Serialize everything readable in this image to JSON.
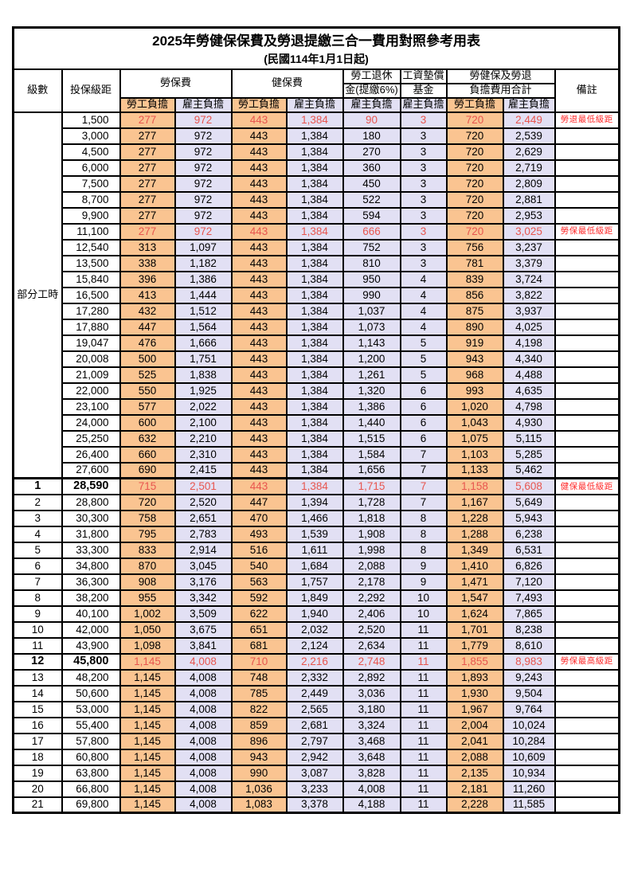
{
  "table": {
    "title": "2025年勞健保保費及勞退提繳三合一費用對照參考用表",
    "subtitle": "(民國114年1月1日起)",
    "columns": {
      "level": "級數",
      "bracket": "投保級距",
      "labor_insurance": "勞保費",
      "health_insurance": "健保費",
      "pension_line1": "勞工退休",
      "pension_line2": "金(提繳6%)",
      "wage_fund_line1": "工資墊償",
      "wage_fund_line2": "基金",
      "total_line1": "勞健保及勞退",
      "total_line2": "負擔費用合計",
      "remark": "備註",
      "employee": "勞工負擔",
      "employer": "雇主負擔"
    },
    "part_time_label": "部分工時",
    "part_time_rowspan": 23,
    "colors": {
      "employee_bg": "#FAC491",
      "employer_bg": "#E2E0F4",
      "highlight_value_text": "#E8564F",
      "note_text": "#FF2B2B",
      "border": "#000000"
    },
    "rows": [
      {
        "level": "",
        "bracket": "1,500",
        "values": [
          "277",
          "972",
          "443",
          "1,384",
          "90",
          "3",
          "720",
          "2,449"
        ],
        "note": "勞退最低級距",
        "red": true,
        "bold": false
      },
      {
        "level": "",
        "bracket": "3,000",
        "values": [
          "277",
          "972",
          "443",
          "1,384",
          "180",
          "3",
          "720",
          "2,539"
        ],
        "note": "",
        "red": false,
        "bold": false
      },
      {
        "level": "",
        "bracket": "4,500",
        "values": [
          "277",
          "972",
          "443",
          "1,384",
          "270",
          "3",
          "720",
          "2,629"
        ],
        "note": "",
        "red": false,
        "bold": false
      },
      {
        "level": "",
        "bracket": "6,000",
        "values": [
          "277",
          "972",
          "443",
          "1,384",
          "360",
          "3",
          "720",
          "2,719"
        ],
        "note": "",
        "red": false,
        "bold": false
      },
      {
        "level": "",
        "bracket": "7,500",
        "values": [
          "277",
          "972",
          "443",
          "1,384",
          "450",
          "3",
          "720",
          "2,809"
        ],
        "note": "",
        "red": false,
        "bold": false
      },
      {
        "level": "",
        "bracket": "8,700",
        "values": [
          "277",
          "972",
          "443",
          "1,384",
          "522",
          "3",
          "720",
          "2,881"
        ],
        "note": "",
        "red": false,
        "bold": false
      },
      {
        "level": "",
        "bracket": "9,900",
        "values": [
          "277",
          "972",
          "443",
          "1,384",
          "594",
          "3",
          "720",
          "2,953"
        ],
        "note": "",
        "red": false,
        "bold": false
      },
      {
        "level": "",
        "bracket": "11,100",
        "values": [
          "277",
          "972",
          "443",
          "1,384",
          "666",
          "3",
          "720",
          "3,025"
        ],
        "note": "勞保最低級距",
        "red": true,
        "bold": false
      },
      {
        "level": "",
        "bracket": "12,540",
        "values": [
          "313",
          "1,097",
          "443",
          "1,384",
          "752",
          "3",
          "756",
          "3,237"
        ],
        "note": "",
        "red": false,
        "bold": false
      },
      {
        "level": "",
        "bracket": "13,500",
        "values": [
          "338",
          "1,182",
          "443",
          "1,384",
          "810",
          "3",
          "781",
          "3,379"
        ],
        "note": "",
        "red": false,
        "bold": false
      },
      {
        "level": "",
        "bracket": "15,840",
        "values": [
          "396",
          "1,386",
          "443",
          "1,384",
          "950",
          "4",
          "839",
          "3,724"
        ],
        "note": "",
        "red": false,
        "bold": false
      },
      {
        "level": "",
        "bracket": "16,500",
        "values": [
          "413",
          "1,444",
          "443",
          "1,384",
          "990",
          "4",
          "856",
          "3,822"
        ],
        "note": "",
        "red": false,
        "bold": false
      },
      {
        "level": "",
        "bracket": "17,280",
        "values": [
          "432",
          "1,512",
          "443",
          "1,384",
          "1,037",
          "4",
          "875",
          "3,937"
        ],
        "note": "",
        "red": false,
        "bold": false
      },
      {
        "level": "",
        "bracket": "17,880",
        "values": [
          "447",
          "1,564",
          "443",
          "1,384",
          "1,073",
          "4",
          "890",
          "4,025"
        ],
        "note": "",
        "red": false,
        "bold": false
      },
      {
        "level": "",
        "bracket": "19,047",
        "values": [
          "476",
          "1,666",
          "443",
          "1,384",
          "1,143",
          "5",
          "919",
          "4,198"
        ],
        "note": "",
        "red": false,
        "bold": false
      },
      {
        "level": "",
        "bracket": "20,008",
        "values": [
          "500",
          "1,751",
          "443",
          "1,384",
          "1,200",
          "5",
          "943",
          "4,340"
        ],
        "note": "",
        "red": false,
        "bold": false
      },
      {
        "level": "",
        "bracket": "21,009",
        "values": [
          "525",
          "1,838",
          "443",
          "1,384",
          "1,261",
          "5",
          "968",
          "4,488"
        ],
        "note": "",
        "red": false,
        "bold": false
      },
      {
        "level": "",
        "bracket": "22,000",
        "values": [
          "550",
          "1,925",
          "443",
          "1,384",
          "1,320",
          "6",
          "993",
          "4,635"
        ],
        "note": "",
        "red": false,
        "bold": false
      },
      {
        "level": "",
        "bracket": "23,100",
        "values": [
          "577",
          "2,022",
          "443",
          "1,384",
          "1,386",
          "6",
          "1,020",
          "4,798"
        ],
        "note": "",
        "red": false,
        "bold": false
      },
      {
        "level": "",
        "bracket": "24,000",
        "values": [
          "600",
          "2,100",
          "443",
          "1,384",
          "1,440",
          "6",
          "1,043",
          "4,930"
        ],
        "note": "",
        "red": false,
        "bold": false
      },
      {
        "level": "",
        "bracket": "25,250",
        "values": [
          "632",
          "2,210",
          "443",
          "1,384",
          "1,515",
          "6",
          "1,075",
          "5,115"
        ],
        "note": "",
        "red": false,
        "bold": false
      },
      {
        "level": "",
        "bracket": "26,400",
        "values": [
          "660",
          "2,310",
          "443",
          "1,384",
          "1,584",
          "7",
          "1,103",
          "5,285"
        ],
        "note": "",
        "red": false,
        "bold": false
      },
      {
        "level": "",
        "bracket": "27,600",
        "values": [
          "690",
          "2,415",
          "443",
          "1,384",
          "1,656",
          "7",
          "1,133",
          "5,462"
        ],
        "note": "",
        "red": false,
        "bold": false
      },
      {
        "level": "1",
        "bracket": "28,590",
        "values": [
          "715",
          "2,501",
          "443",
          "1,384",
          "1,715",
          "7",
          "1,158",
          "5,608"
        ],
        "note": "健保最低級距",
        "red": true,
        "bold": true
      },
      {
        "level": "2",
        "bracket": "28,800",
        "values": [
          "720",
          "2,520",
          "447",
          "1,394",
          "1,728",
          "7",
          "1,167",
          "5,649"
        ],
        "note": "",
        "red": false,
        "bold": false
      },
      {
        "level": "3",
        "bracket": "30,300",
        "values": [
          "758",
          "2,651",
          "470",
          "1,466",
          "1,818",
          "8",
          "1,228",
          "5,943"
        ],
        "note": "",
        "red": false,
        "bold": false
      },
      {
        "level": "4",
        "bracket": "31,800",
        "values": [
          "795",
          "2,783",
          "493",
          "1,539",
          "1,908",
          "8",
          "1,288",
          "6,238"
        ],
        "note": "",
        "red": false,
        "bold": false
      },
      {
        "level": "5",
        "bracket": "33,300",
        "values": [
          "833",
          "2,914",
          "516",
          "1,611",
          "1,998",
          "8",
          "1,349",
          "6,531"
        ],
        "note": "",
        "red": false,
        "bold": false
      },
      {
        "level": "6",
        "bracket": "34,800",
        "values": [
          "870",
          "3,045",
          "540",
          "1,684",
          "2,088",
          "9",
          "1,410",
          "6,826"
        ],
        "note": "",
        "red": false,
        "bold": false
      },
      {
        "level": "7",
        "bracket": "36,300",
        "values": [
          "908",
          "3,176",
          "563",
          "1,757",
          "2,178",
          "9",
          "1,471",
          "7,120"
        ],
        "note": "",
        "red": false,
        "bold": false
      },
      {
        "level": "8",
        "bracket": "38,200",
        "values": [
          "955",
          "3,342",
          "592",
          "1,849",
          "2,292",
          "10",
          "1,547",
          "7,493"
        ],
        "note": "",
        "red": false,
        "bold": false
      },
      {
        "level": "9",
        "bracket": "40,100",
        "values": [
          "1,002",
          "3,509",
          "622",
          "1,940",
          "2,406",
          "10",
          "1,624",
          "7,865"
        ],
        "note": "",
        "red": false,
        "bold": false
      },
      {
        "level": "10",
        "bracket": "42,000",
        "values": [
          "1,050",
          "3,675",
          "651",
          "2,032",
          "2,520",
          "11",
          "1,701",
          "8,238"
        ],
        "note": "",
        "red": false,
        "bold": false
      },
      {
        "level": "11",
        "bracket": "43,900",
        "values": [
          "1,098",
          "3,841",
          "681",
          "2,124",
          "2,634",
          "11",
          "1,779",
          "8,610"
        ],
        "note": "",
        "red": false,
        "bold": false
      },
      {
        "level": "12",
        "bracket": "45,800",
        "values": [
          "1,145",
          "4,008",
          "710",
          "2,216",
          "2,748",
          "11",
          "1,855",
          "8,983"
        ],
        "note": "勞保最高級距",
        "red": true,
        "bold": true
      },
      {
        "level": "13",
        "bracket": "48,200",
        "values": [
          "1,145",
          "4,008",
          "748",
          "2,332",
          "2,892",
          "11",
          "1,893",
          "9,243"
        ],
        "note": "",
        "red": false,
        "bold": false
      },
      {
        "level": "14",
        "bracket": "50,600",
        "values": [
          "1,145",
          "4,008",
          "785",
          "2,449",
          "3,036",
          "11",
          "1,930",
          "9,504"
        ],
        "note": "",
        "red": false,
        "bold": false
      },
      {
        "level": "15",
        "bracket": "53,000",
        "values": [
          "1,145",
          "4,008",
          "822",
          "2,565",
          "3,180",
          "11",
          "1,967",
          "9,764"
        ],
        "note": "",
        "red": false,
        "bold": false
      },
      {
        "level": "16",
        "bracket": "55,400",
        "values": [
          "1,145",
          "4,008",
          "859",
          "2,681",
          "3,324",
          "11",
          "2,004",
          "10,024"
        ],
        "note": "",
        "red": false,
        "bold": false
      },
      {
        "level": "17",
        "bracket": "57,800",
        "values": [
          "1,145",
          "4,008",
          "896",
          "2,797",
          "3,468",
          "11",
          "2,041",
          "10,284"
        ],
        "note": "",
        "red": false,
        "bold": false
      },
      {
        "level": "18",
        "bracket": "60,800",
        "values": [
          "1,145",
          "4,008",
          "943",
          "2,942",
          "3,648",
          "11",
          "2,088",
          "10,609"
        ],
        "note": "",
        "red": false,
        "bold": false
      },
      {
        "level": "19",
        "bracket": "63,800",
        "values": [
          "1,145",
          "4,008",
          "990",
          "3,087",
          "3,828",
          "11",
          "2,135",
          "10,934"
        ],
        "note": "",
        "red": false,
        "bold": false
      },
      {
        "level": "20",
        "bracket": "66,800",
        "values": [
          "1,145",
          "4,008",
          "1,036",
          "3,233",
          "4,008",
          "11",
          "2,181",
          "11,260"
        ],
        "note": "",
        "red": false,
        "bold": false
      },
      {
        "level": "21",
        "bracket": "69,800",
        "values": [
          "1,145",
          "4,008",
          "1,083",
          "3,378",
          "4,188",
          "11",
          "2,228",
          "11,585"
        ],
        "note": "",
        "red": false,
        "bold": false
      }
    ]
  }
}
